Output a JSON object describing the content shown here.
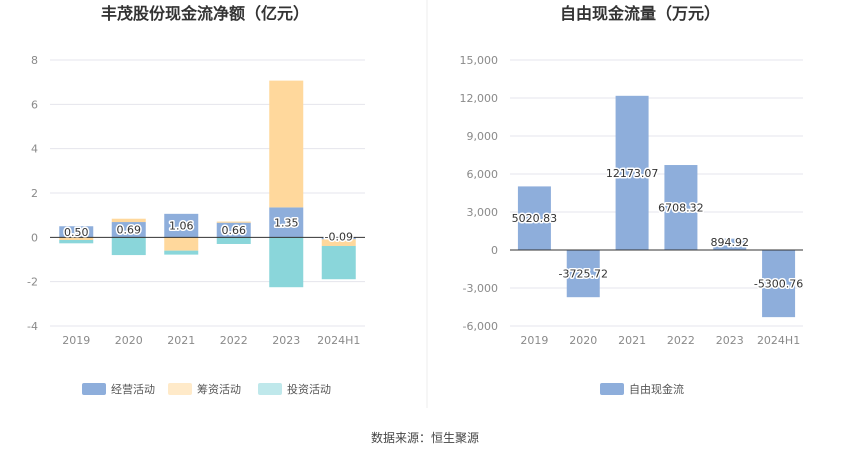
{
  "footer": {
    "source": "数据来源：恒生聚源"
  },
  "colors": {
    "operating": "#8eaedb",
    "financing": "#ffd89c",
    "investing": "#8ad6da",
    "free_cash_flow": "#8eaedb",
    "grid": "#e4e4ec",
    "axis": "#333333"
  },
  "chart_data": [
    {
      "type": "bar",
      "stacked": true,
      "title": "丰茂股份现金流净额（亿元）",
      "categories": [
        "2019",
        "2020",
        "2021",
        "2022",
        "2023",
        "2024H1"
      ],
      "ylim": [
        -4,
        8
      ],
      "yticks": [
        -4,
        -2,
        0,
        2,
        4,
        6,
        8
      ],
      "grid": true,
      "legend_position": "bottom",
      "series": [
        {
          "name": "经营活动",
          "color_key": "operating",
          "values": [
            0.5,
            0.69,
            1.06,
            0.66,
            1.35,
            -0.09
          ]
        },
        {
          "name": "筹资活动",
          "color_key": "financing",
          "values": [
            -0.12,
            0.15,
            -0.6,
            0.05,
            5.72,
            -0.3
          ]
        },
        {
          "name": "投资活动",
          "color_key": "investing",
          "values": [
            -0.15,
            -0.8,
            -0.18,
            -0.3,
            -2.25,
            -1.5
          ]
        }
      ],
      "data_labels": [
        "0.50",
        "0.69",
        "1.06",
        "0.66",
        "1.35",
        "-0.09"
      ]
    },
    {
      "type": "bar",
      "title": "自由现金流量（万元）",
      "categories": [
        "2019",
        "2020",
        "2021",
        "2022",
        "2023",
        "2024H1"
      ],
      "ylim": [
        -6000,
        15000
      ],
      "yticks": [
        -6000,
        -3000,
        0,
        3000,
        6000,
        9000,
        12000,
        15000
      ],
      "ytick_labels": [
        "-6,000",
        "-3,000",
        "0",
        "3,000",
        "6,000",
        "9,000",
        "12,000",
        "15,000"
      ],
      "grid": true,
      "legend_position": "bottom",
      "series": [
        {
          "name": "自由现金流",
          "color_key": "free_cash_flow",
          "values": [
            5020.83,
            -3725.72,
            12173.07,
            6708.32,
            894.92,
            -5300.76
          ]
        }
      ],
      "data_labels": [
        "5020.83",
        "-3725.72",
        "12173.07",
        "6708.32",
        "894.92",
        "-5300.76"
      ]
    }
  ]
}
